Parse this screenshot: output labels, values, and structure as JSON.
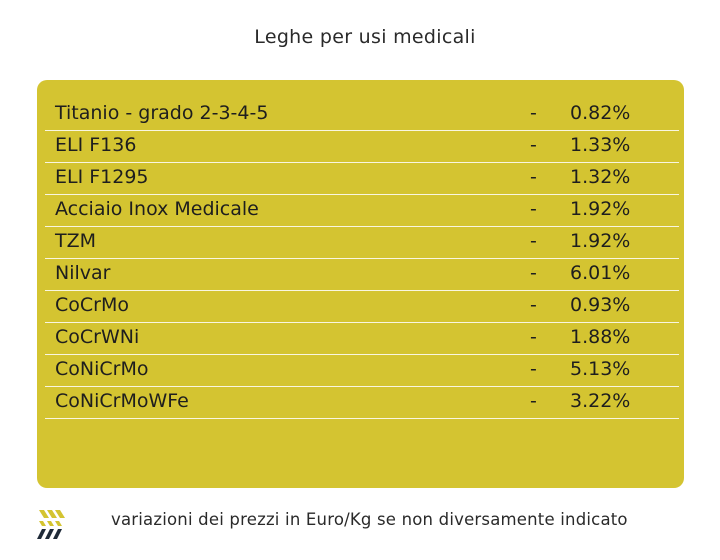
{
  "title": "Leghe per usi medicali",
  "rows": [
    {
      "name": "Titanio - grado 2-3-4-5",
      "dash": "-",
      "change": "0.82%"
    },
    {
      "name": "ELI F136",
      "dash": "-",
      "change": "1.33%"
    },
    {
      "name": "ELI F1295",
      "dash": "-",
      "change": "1.32%"
    },
    {
      "name": "Acciaio Inox Medicale",
      "dash": "-",
      "change": "1.92%"
    },
    {
      "name": "TZM",
      "dash": "-",
      "change": "1.92%"
    },
    {
      "name": "Nilvar",
      "dash": "-",
      "change": "6.01%"
    },
    {
      "name": "CoCrMo",
      "dash": "-",
      "change": "0.93%"
    },
    {
      "name": "CoCrWNi",
      "dash": "-",
      "change": "1.88%"
    },
    {
      "name": "CoNiCrMo",
      "dash": "-",
      "change": "5.13%"
    },
    {
      "name": "CoNiCrMoWFe",
      "dash": "-",
      "change": "3.22%"
    }
  ],
  "footer": {
    "note": "variazioni dei prezzi in Euro/Kg se non diversamente indicato",
    "logo_icon": "chevron-stripes-logo-icon"
  },
  "colors": {
    "card": "#d4c431",
    "logo_yellow": "#d4c431",
    "logo_dark": "#1f2a38"
  }
}
